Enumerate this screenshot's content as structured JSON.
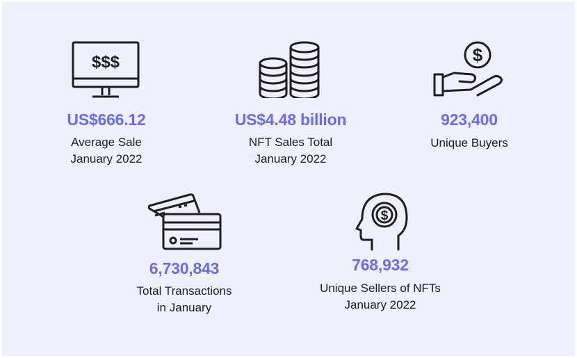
{
  "colors": {
    "accent": "#6c6be4",
    "icon": "#1e1e1e",
    "background": "#eef0fb"
  },
  "stats": [
    {
      "icon": "monitor-dollar-icon",
      "monitor_text": "$$$",
      "value": "US$666.12",
      "label_line1": "Average Sale",
      "label_line2": "January 2022"
    },
    {
      "icon": "coin-stacks-icon",
      "value": "US$4.48 billion",
      "label_line1": "NFT Sales Total",
      "label_line2": "January 2022"
    },
    {
      "icon": "hand-coin-icon",
      "coin_symbol": "$",
      "value": "923,400",
      "label_line1": "Unique Buyers",
      "label_line2": ""
    },
    {
      "icon": "credit-cards-icon",
      "value": "6,730,843",
      "label_line1": "Total Transactions",
      "label_line2": "in January"
    },
    {
      "icon": "head-dollar-icon",
      "coin_symbol": "$",
      "value": "768,932",
      "label_line1": "Unique Sellers of NFTs",
      "label_line2": "January 2022"
    }
  ]
}
